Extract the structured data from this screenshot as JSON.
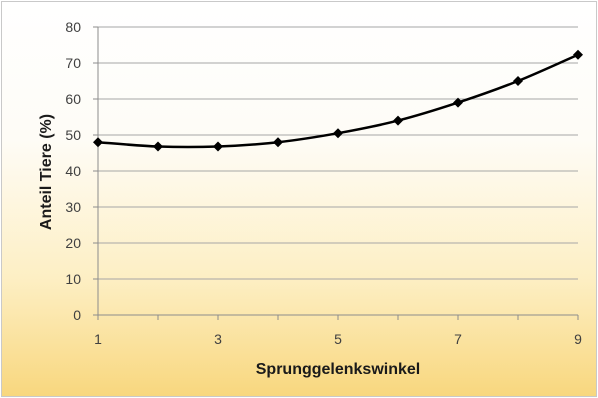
{
  "chart_data": {
    "type": "line",
    "title": "",
    "xlabel": "Sprunggelenkswinkel",
    "ylabel": "Anteil Tiere (%)",
    "xlim": [
      1,
      9
    ],
    "ylim": [
      0,
      80
    ],
    "x_ticks": [
      1,
      3,
      5,
      7,
      9
    ],
    "y_ticks": [
      0,
      10,
      20,
      30,
      40,
      50,
      60,
      70,
      80
    ],
    "grid": true,
    "legend": "none",
    "series": [
      {
        "x": [
          1,
          2,
          3,
          4,
          5,
          6,
          7,
          8,
          9
        ],
        "values": [
          48,
          46.8,
          46.8,
          48,
          50.5,
          54,
          59,
          65,
          72.3
        ],
        "color": "#000000",
        "marker": "diamond"
      }
    ]
  }
}
